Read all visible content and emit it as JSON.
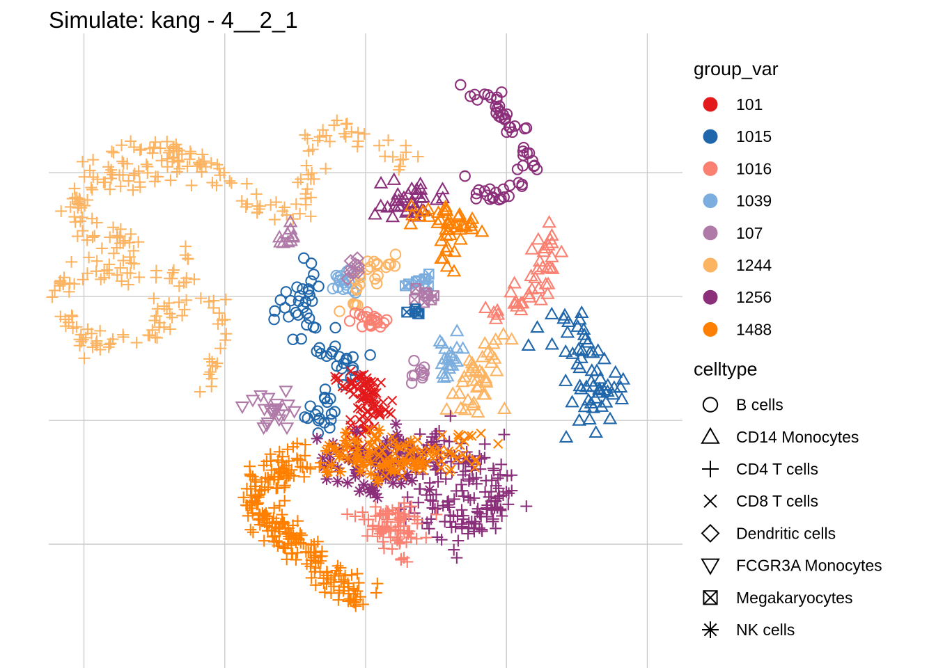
{
  "chart_data": {
    "type": "scatter",
    "title": "Simulate: kang - 4__2_1",
    "xlabel": "",
    "ylabel": "",
    "grid": true,
    "axes_visible": false,
    "legend_position": "right",
    "legends": [
      {
        "title": "group_var",
        "kind": "color",
        "entries": [
          {
            "label": "101",
            "color": "#E31A1C"
          },
          {
            "label": "1015",
            "color": "#1F66AA"
          },
          {
            "label": "1016",
            "color": "#FA8072"
          },
          {
            "label": "1039",
            "color": "#7BAEDE"
          },
          {
            "label": "107",
            "color": "#B07AA8"
          },
          {
            "label": "1244",
            "color": "#FDB462"
          },
          {
            "label": "1256",
            "color": "#8B2F7A"
          },
          {
            "label": "1488",
            "color": "#FF8000"
          }
        ]
      },
      {
        "title": "celltype",
        "kind": "shape",
        "entries": [
          {
            "label": "B cells",
            "shape": "circle"
          },
          {
            "label": "CD14 Monocytes",
            "shape": "triangle"
          },
          {
            "label": "CD4 T cells",
            "shape": "plus"
          },
          {
            "label": "CD8 T cells",
            "shape": "cross"
          },
          {
            "label": "Dendritic cells",
            "shape": "diamond"
          },
          {
            "label": "FCGR3A Monocytes",
            "shape": "triangle-down"
          },
          {
            "label": "Megakaryocytes",
            "shape": "square-x"
          },
          {
            "label": "NK cells",
            "shape": "asterisk"
          }
        ]
      }
    ],
    "clusters": [
      {
        "group": "1244",
        "celltype": "CD4 T cells",
        "n": 110,
        "spread": 0.5,
        "path": [
          [
            -7.2,
            6.0
          ],
          [
            -7.0,
            6.6
          ],
          [
            -6.6,
            7.0
          ],
          [
            -6.0,
            6.9
          ],
          [
            -5.3,
            6.6
          ],
          [
            -4.6,
            6.2
          ],
          [
            -3.9,
            5.6
          ],
          [
            -3.2,
            5.0
          ],
          [
            -2.6,
            4.6
          ],
          [
            -2.0,
            4.7
          ],
          [
            -1.6,
            5.3
          ],
          [
            -1.7,
            6.1
          ],
          [
            -1.6,
            6.8
          ],
          [
            -1.2,
            7.3
          ],
          [
            -0.7,
            7.4
          ],
          [
            -0.3,
            7.3
          ],
          [
            0.3,
            7.1
          ],
          [
            0.8,
            6.8
          ],
          [
            1.2,
            6.2
          ]
        ]
      },
      {
        "group": "1244",
        "celltype": "CD4 T cells",
        "n": 90,
        "spread": 0.5,
        "path": [
          [
            -6.8,
            2.5
          ],
          [
            -6.6,
            3.2
          ],
          [
            -7.0,
            3.8
          ],
          [
            -7.6,
            4.0
          ],
          [
            -8.0,
            4.3
          ],
          [
            -8.1,
            5.0
          ],
          [
            -8.0,
            5.6
          ],
          [
            -7.6,
            5.9
          ],
          [
            -7.0,
            5.7
          ],
          [
            -6.2,
            5.8
          ],
          [
            -5.6,
            6.2
          ],
          [
            -5.3,
            6.8
          ]
        ]
      },
      {
        "group": "1244",
        "celltype": "CD4 T cells",
        "n": 100,
        "spread": 0.5,
        "path": [
          [
            -6.8,
            3.8
          ],
          [
            -7.0,
            3.2
          ],
          [
            -7.6,
            2.8
          ],
          [
            -8.2,
            2.7
          ],
          [
            -8.6,
            2.4
          ],
          [
            -8.7,
            1.8
          ],
          [
            -8.5,
            1.2
          ],
          [
            -8.0,
            0.7
          ],
          [
            -7.4,
            0.5
          ],
          [
            -6.8,
            0.4
          ],
          [
            -6.2,
            0.6
          ],
          [
            -5.8,
            1.2
          ],
          [
            -5.6,
            1.9
          ],
          [
            -5.5,
            2.6
          ],
          [
            -5.3,
            3.4
          ]
        ]
      },
      {
        "group": "1244",
        "celltype": "CD4 T cells",
        "n": 25,
        "spread": 0.4,
        "path": [
          [
            -4.6,
            -1.1
          ],
          [
            -4.3,
            -0.6
          ],
          [
            -4.1,
            0.0
          ],
          [
            -4.1,
            0.7
          ],
          [
            -4.2,
            1.3
          ],
          [
            -4.4,
            1.8
          ],
          [
            -4.7,
            2.3
          ],
          [
            -5.0,
            2.8
          ]
        ]
      },
      {
        "group": "1256",
        "celltype": "B cells",
        "n": 60,
        "spread": 0.35,
        "path": [
          [
            2.5,
            8.9
          ],
          [
            3.0,
            8.6
          ],
          [
            3.6,
            8.3
          ],
          [
            4.0,
            7.8
          ],
          [
            4.4,
            7.2
          ],
          [
            4.6,
            6.4
          ],
          [
            4.5,
            5.8
          ],
          [
            4.2,
            5.4
          ],
          [
            3.8,
            5.2
          ],
          [
            3.3,
            5.3
          ],
          [
            3.0,
            5.6
          ]
        ]
      },
      {
        "group": "1256",
        "celltype": "CD14 Monocytes",
        "n": 35,
        "spread": 0.8,
        "path": [
          [
            0.6,
            4.7
          ],
          [
            1.0,
            5.1
          ],
          [
            1.5,
            5.3
          ],
          [
            1.8,
            5.0
          ]
        ]
      },
      {
        "group": "1488",
        "celltype": "CD14 Monocytes",
        "n": 45,
        "spread": 0.5,
        "path": [
          [
            1.3,
            4.9
          ],
          [
            1.9,
            4.6
          ],
          [
            2.5,
            4.5
          ],
          [
            2.9,
            4.3
          ],
          [
            2.5,
            4.0
          ],
          [
            2.2,
            3.5
          ],
          [
            2.3,
            3.0
          ]
        ]
      },
      {
        "group": "1015",
        "celltype": "B cells",
        "n": 70,
        "spread": 0.6,
        "path": [
          [
            -1.3,
            2.9
          ],
          [
            -1.6,
            2.4
          ],
          [
            -1.9,
            1.8
          ],
          [
            -1.7,
            1.1
          ],
          [
            -1.2,
            0.6
          ],
          [
            -0.7,
            0.2
          ],
          [
            -0.5,
            -0.3
          ],
          [
            -1.0,
            -1.0
          ],
          [
            -1.4,
            -1.8
          ],
          [
            -1.2,
            -2.6
          ]
        ]
      },
      {
        "group": "1015",
        "celltype": "CD14 Monocytes",
        "n": 60,
        "spread": 1.0,
        "path": [
          [
            5.5,
            1.4
          ],
          [
            5.8,
            0.4
          ],
          [
            6.2,
            -0.6
          ],
          [
            6.6,
            -1.4
          ],
          [
            6.2,
            -2.1
          ]
        ]
      },
      {
        "group": "1016",
        "celltype": "CD14 Monocytes",
        "n": 40,
        "spread": 0.4,
        "path": [
          [
            5.1,
            4.2
          ],
          [
            5.2,
            3.3
          ],
          [
            4.9,
            2.4
          ],
          [
            4.3,
            1.7
          ],
          [
            3.6,
            1.3
          ]
        ]
      },
      {
        "group": "1244",
        "celltype": "CD14 Monocytes",
        "n": 40,
        "spread": 0.7,
        "path": [
          [
            3.6,
            0.4
          ],
          [
            3.3,
            -0.3
          ],
          [
            3.0,
            -1.2
          ],
          [
            2.8,
            -1.8
          ]
        ]
      },
      {
        "group": "1039",
        "celltype": "CD14 Monocytes",
        "n": 20,
        "spread": 0.5,
        "path": [
          [
            2.4,
            0.5
          ],
          [
            2.3,
            -0.4
          ]
        ]
      },
      {
        "group": "1039",
        "celltype": "B cells",
        "n": 18,
        "spread": 0.4,
        "path": [
          [
            -0.8,
            2.8
          ],
          [
            -0.6,
            2.6
          ],
          [
            -0.4,
            2.3
          ]
        ]
      },
      {
        "group": "1244",
        "celltype": "B cells",
        "n": 25,
        "spread": 0.4,
        "path": [
          [
            1.0,
            3.2
          ],
          [
            0.4,
            3.0
          ],
          [
            -0.1,
            2.6
          ],
          [
            -0.3,
            2.0
          ],
          [
            -0.3,
            1.6
          ]
        ]
      },
      {
        "group": "1016",
        "celltype": "B cells",
        "n": 20,
        "spread": 0.4,
        "path": [
          [
            -0.2,
            1.5
          ],
          [
            0.2,
            1.2
          ],
          [
            0.6,
            1.1
          ]
        ]
      },
      {
        "group": "107",
        "celltype": "B cells",
        "n": 10,
        "spread": 0.35,
        "path": [
          [
            1.6,
            -0.6
          ],
          [
            1.6,
            -0.4
          ]
        ]
      },
      {
        "group": "107",
        "celltype": "FCGR3A Monocytes",
        "n": 20,
        "spread": 0.6,
        "path": [
          [
            -2.7,
            -1.5
          ],
          [
            -2.6,
            -1.8
          ]
        ]
      },
      {
        "group": "1039",
        "celltype": "Megakaryocytes",
        "n": 8,
        "spread": 0.3,
        "path": [
          [
            1.3,
            2.4
          ],
          [
            1.8,
            2.5
          ]
        ]
      },
      {
        "group": "107",
        "celltype": "Megakaryocytes",
        "n": 8,
        "spread": 0.3,
        "path": [
          [
            1.5,
            2.1
          ],
          [
            1.9,
            1.9
          ]
        ]
      },
      {
        "group": "1015",
        "celltype": "Megakaryocytes",
        "n": 5,
        "spread": 0.25,
        "path": [
          [
            1.3,
            1.6
          ],
          [
            1.6,
            1.5
          ]
        ]
      },
      {
        "group": "107",
        "celltype": "CD14 Monocytes",
        "n": 10,
        "spread": 0.3,
        "path": [
          [
            -2.0,
            4.3
          ],
          [
            -2.4,
            3.8
          ]
        ]
      },
      {
        "group": "107",
        "celltype": "Dendritic cells",
        "n": 10,
        "spread": 0.35,
        "path": [
          [
            -0.5,
            2.6
          ],
          [
            -0.2,
            3.0
          ]
        ]
      },
      {
        "group": "101",
        "celltype": "CD8 T cells",
        "n": 90,
        "spread": 0.55,
        "path": [
          [
            -0.7,
            -0.6
          ],
          [
            -0.2,
            -0.8
          ],
          [
            0.2,
            -0.9
          ],
          [
            0.3,
            -1.4
          ],
          [
            0.0,
            -2.0
          ],
          [
            -0.4,
            -2.6
          ]
        ]
      },
      {
        "group": "1256",
        "celltype": "CD4 T cells",
        "n": 170,
        "spread": 0.9,
        "path": [
          [
            1.5,
            -2.7
          ],
          [
            2.4,
            -3.2
          ],
          [
            3.3,
            -3.7
          ],
          [
            3.7,
            -4.6
          ],
          [
            3.0,
            -5.3
          ],
          [
            2.2,
            -5.1
          ],
          [
            1.6,
            -4.4
          ]
        ]
      },
      {
        "group": "1256",
        "celltype": "NK cells",
        "n": 90,
        "spread": 0.9,
        "path": [
          [
            -1.0,
            -3.2
          ],
          [
            -0.2,
            -3.4
          ],
          [
            0.6,
            -3.1
          ],
          [
            1.2,
            -3.4
          ],
          [
            0.4,
            -3.8
          ]
        ]
      },
      {
        "group": "1488",
        "celltype": "CD8 T cells",
        "n": 70,
        "spread": 0.8,
        "path": [
          [
            0.2,
            -2.9
          ],
          [
            0.8,
            -3.1
          ],
          [
            1.8,
            -3.3
          ],
          [
            2.6,
            -3.0
          ],
          [
            3.2,
            -2.6
          ]
        ]
      },
      {
        "group": "1488",
        "celltype": "NK cells",
        "n": 50,
        "spread": 0.8,
        "path": [
          [
            -1.0,
            -2.9
          ],
          [
            -0.2,
            -3.2
          ],
          [
            0.6,
            -3.4
          ],
          [
            1.2,
            -3.0
          ]
        ]
      },
      {
        "group": "1016",
        "celltype": "CD4 T cells",
        "n": 80,
        "spread": 0.6,
        "path": [
          [
            0.0,
            -5.2
          ],
          [
            0.6,
            -5.3
          ],
          [
            1.0,
            -5.1
          ],
          [
            1.2,
            -5.5
          ],
          [
            0.9,
            -6.0
          ],
          [
            0.6,
            -5.8
          ]
        ]
      },
      {
        "group": "1488",
        "celltype": "CD4 T cells",
        "n": 230,
        "spread": 0.6,
        "path": [
          [
            -1.7,
            -3.2
          ],
          [
            -2.4,
            -3.6
          ],
          [
            -3.0,
            -4.1
          ],
          [
            -3.3,
            -4.5
          ],
          [
            -3.0,
            -5.0
          ],
          [
            -2.4,
            -5.6
          ],
          [
            -1.7,
            -6.2
          ],
          [
            -1.1,
            -6.8
          ],
          [
            -0.6,
            -7.4
          ],
          [
            -0.1,
            -7.7
          ]
        ]
      }
    ]
  }
}
